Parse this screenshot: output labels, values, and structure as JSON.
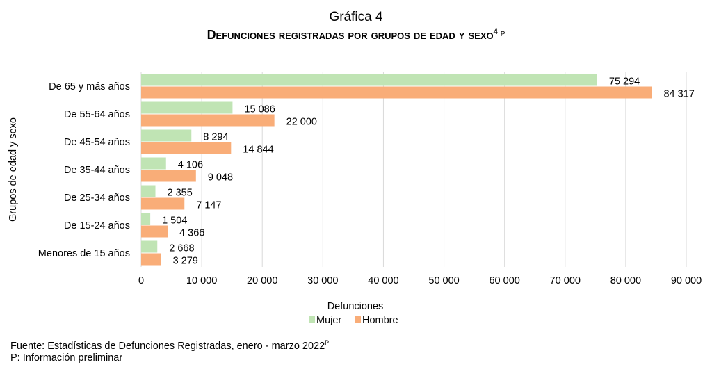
{
  "chart_data": {
    "type": "bar",
    "orientation": "horizontal",
    "title": "Gráfica 4",
    "subtitle": "Defunciones registradas por grupos de edad y sexo",
    "subtitle_sup": "4",
    "subtitle_mark": "P",
    "xlabel": "Defunciones",
    "ylabel": "Grupos de edad y sexo",
    "categories": [
      "De 65 y más años",
      "De 55-64 años",
      "De 45-54 años",
      "De 35-44 años",
      "De 25-34 años",
      "De 15-24 años",
      "Menores de 15 años"
    ],
    "series": [
      {
        "name": "Mujer",
        "color": "#c0e4b4",
        "values": [
          75294,
          15086,
          8294,
          4106,
          2355,
          1504,
          2668
        ],
        "labels": [
          "75 294",
          "15 086",
          "8 294",
          "4 106",
          "2 355",
          "1 504",
          "2 668"
        ]
      },
      {
        "name": "Hombre",
        "color": "#f9ad78",
        "values": [
          84317,
          22000,
          14844,
          9048,
          7147,
          4366,
          3279
        ],
        "labels": [
          "84 317",
          "22 000",
          "14 844",
          "9 048",
          "7 147",
          "4 366",
          "3 279"
        ]
      }
    ],
    "xlim": [
      0,
      90000
    ],
    "xticks": [
      0,
      10000,
      20000,
      30000,
      40000,
      50000,
      60000,
      70000,
      80000,
      90000
    ],
    "xtick_labels": [
      "0",
      "10 000",
      "20 000",
      "30 000",
      "40 000",
      "50 000",
      "60 000",
      "70 000",
      "80 000",
      "90 000"
    ],
    "grid": "vertical",
    "legend": "bottom"
  },
  "footer": {
    "source": "Fuente: Estadísticas de Defunciones Registradas, enero - marzo 2022",
    "source_sup": "P",
    "note": "P: Información preliminar"
  }
}
